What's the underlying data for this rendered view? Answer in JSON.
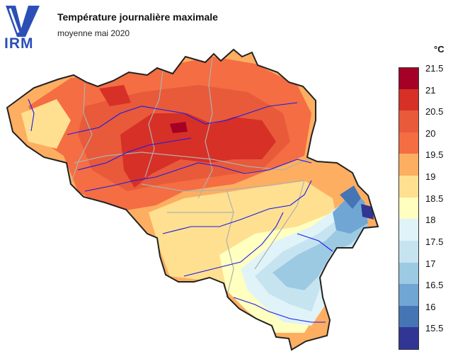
{
  "header": {
    "logo_text": "IRM",
    "title": "Température journalière maximale",
    "subtitle": "moyenne mai 2020"
  },
  "legend": {
    "unit": "°C",
    "levels": [
      {
        "label": "21.5",
        "color": "#a50026"
      },
      {
        "label": "21",
        "color": "#d73027"
      },
      {
        "label": "20.5",
        "color": "#e85a3a"
      },
      {
        "label": "20",
        "color": "#f46d43"
      },
      {
        "label": "19.5",
        "color": "#fdae61"
      },
      {
        "label": "19",
        "color": "#fee090"
      },
      {
        "label": "18.5",
        "color": "#ffffbf"
      },
      {
        "label": "18",
        "color": "#e0f3f8"
      },
      {
        "label": "17.5",
        "color": "#c6e4f0"
      },
      {
        "label": "17",
        "color": "#9ccae3"
      },
      {
        "label": "16.5",
        "color": "#6fa6d3"
      },
      {
        "label": "16",
        "color": "#4575b4"
      },
      {
        "label": "15.5",
        "color": "#313695"
      }
    ]
  },
  "map": {
    "border_color": "#222222",
    "province_color": "#b0b0b0",
    "river_color": "#1a1aee"
  }
}
